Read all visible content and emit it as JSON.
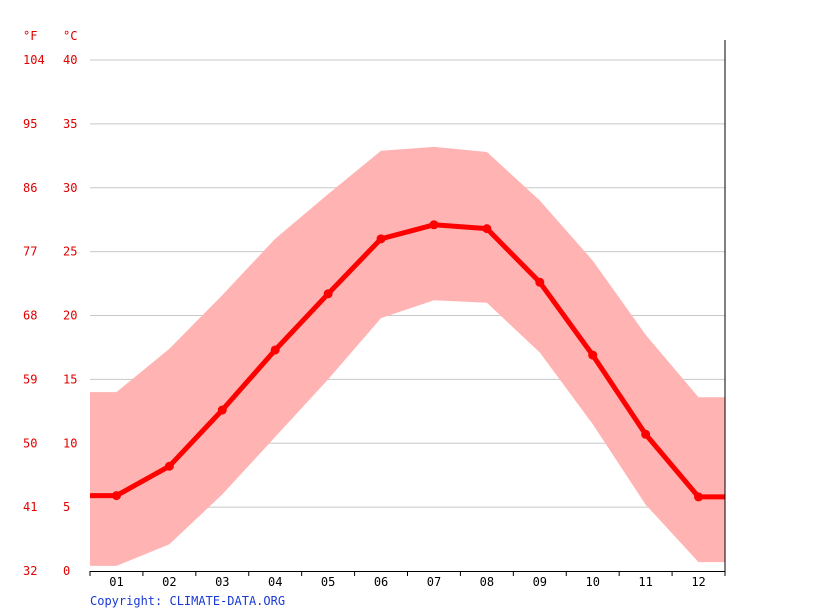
{
  "chart_data": {
    "type": "line",
    "unit_labels": {
      "fahrenheit": "°F",
      "celsius": "°C"
    },
    "y_ticks_celsius": [
      "0",
      "5",
      "10",
      "15",
      "20",
      "25",
      "30",
      "35",
      "40"
    ],
    "y_ticks_fahrenheit": [
      "32",
      "41",
      "50",
      "59",
      "68",
      "77",
      "86",
      "95",
      "104"
    ],
    "ylim": [
      0,
      40
    ],
    "categories": [
      "01",
      "02",
      "03",
      "04",
      "05",
      "06",
      "07",
      "08",
      "09",
      "10",
      "11",
      "12"
    ],
    "series": [
      {
        "values": [
          5.9,
          8.2,
          12.6,
          17.3,
          21.7,
          26.0,
          27.1,
          26.8,
          22.6,
          16.9,
          10.7,
          5.8
        ]
      }
    ],
    "band": {
      "upper": [
        14.0,
        17.4,
        21.6,
        26.0,
        29.5,
        32.9,
        33.2,
        32.8,
        29.0,
        24.3,
        18.5,
        13.6
      ],
      "lower": [
        0.4,
        2.1,
        6.0,
        10.5,
        15.0,
        19.8,
        21.2,
        21.0,
        17.1,
        11.5,
        5.2,
        0.7
      ]
    },
    "grid": true,
    "colors": {
      "line": "#ff0000",
      "band": "#ffb3b3",
      "ticks": "#e00000",
      "grid": "#c8c8c8"
    }
  },
  "footer": {
    "copyright": "Copyright: CLIMATE-DATA.ORG"
  }
}
